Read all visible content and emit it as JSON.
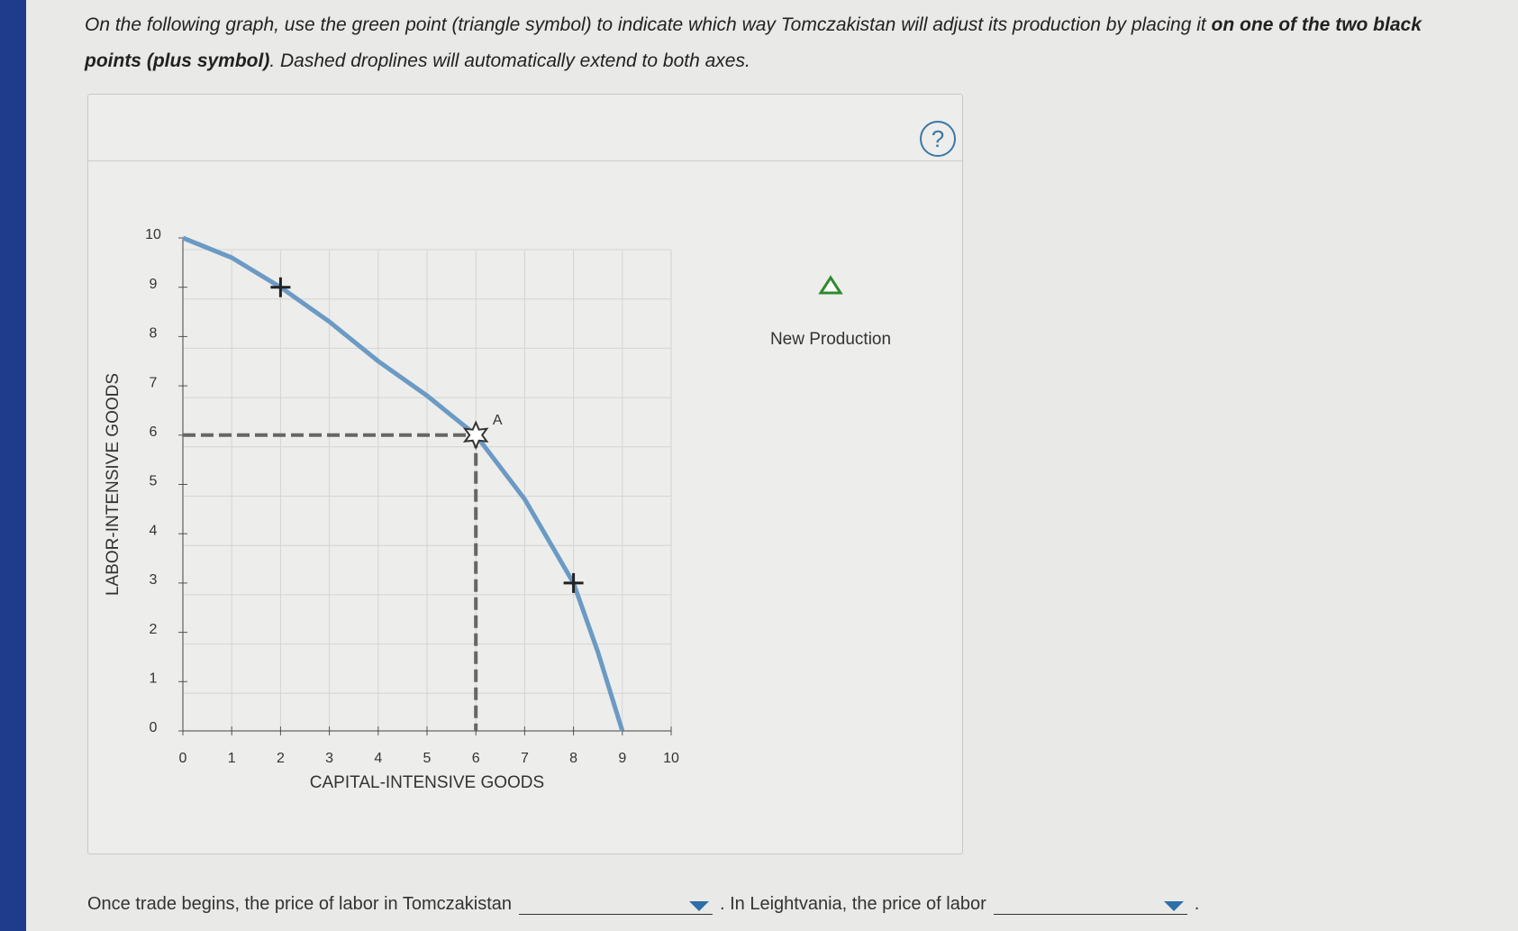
{
  "instructions": [
    "On the following graph, use the green point (triangle symbol) to indicate which way Tomczakistan will adjust its production by placing it ",
    "on one of the two black points (plus symbol)",
    ". Dashed droplines will automatically extend to both axes."
  ],
  "help": "?",
  "chart_data": {
    "type": "line",
    "x_label": "CAPITAL-INTENSIVE GOODS",
    "y_label": "LABOR-INTENSIVE GOODS",
    "xlim": [
      0,
      10
    ],
    "ylim": [
      0,
      10
    ],
    "xticks": [
      0,
      1,
      2,
      3,
      4,
      5,
      6,
      7,
      8,
      9,
      10
    ],
    "yticks": [
      0,
      1,
      2,
      3,
      4,
      5,
      6,
      7,
      8,
      9,
      10
    ],
    "grid": true,
    "x": [
      0,
      1,
      2,
      3,
      4,
      5,
      6,
      7,
      8,
      8.5,
      9
    ],
    "series": [
      {
        "color": "#6b9ac4",
        "values": [
          10,
          9.6,
          9,
          8.3,
          7.5,
          6.8,
          6,
          4.7,
          3,
          1.6,
          0
        ]
      }
    ],
    "points": [
      {
        "x": 2,
        "y": 9,
        "symbol": "plus"
      },
      {
        "x": 8,
        "y": 3,
        "symbol": "plus"
      },
      {
        "x": 6,
        "y": 6,
        "symbol": "star",
        "label": "A",
        "droplines": true
      }
    ],
    "legend": {
      "label": "New Production",
      "color": "#2e8b2e",
      "symbol": "triangle"
    }
  },
  "question": [
    "Once trade begins, the price of labor in Tomczakistan",
    ". In Leightvania, the price of labor",
    "."
  ]
}
